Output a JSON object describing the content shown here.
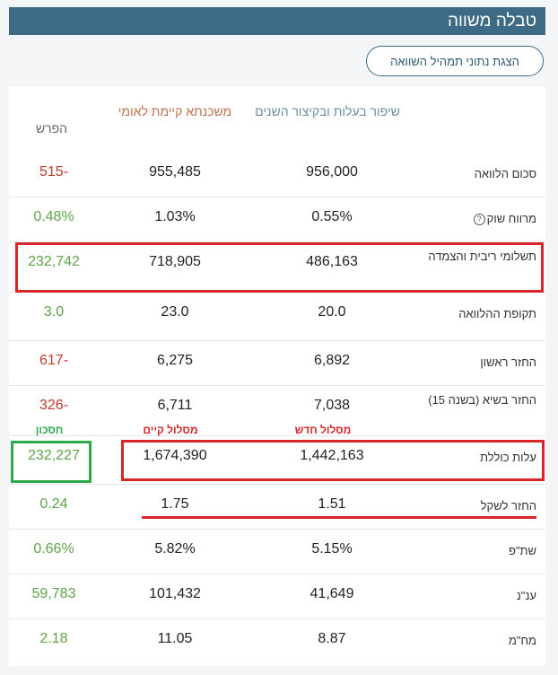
{
  "header": {
    "title": "טבלה משווה"
  },
  "guide_button": {
    "label": "הצגת נתוני תמהיל השוואה"
  },
  "columns": {
    "new_route": "שיפור בעלות ובקיצור השנים",
    "existing": "משכנתא קיימת לאומי",
    "diff": "הפרש"
  },
  "rows": [
    {
      "label": "סכום הלוואה",
      "new": "956,000",
      "existing": "955,485",
      "diff": "-515",
      "diff_color": "#c0392b"
    },
    {
      "label": "מרווח שוק",
      "new": "0.55%",
      "existing": "1.03%",
      "diff": "0.48%",
      "diff_color": "#5fa34a",
      "help_icon": "question-circle-icon"
    },
    {
      "label": "תשלומי ריבית והצמדה",
      "new": "486,163",
      "existing": "718,905",
      "diff": "232,742",
      "diff_color": "#5fa34a"
    },
    {
      "label": "תקופת ההלוואה",
      "new": "20.0",
      "existing": "23.0",
      "diff": "3.0",
      "diff_color": "#5fa34a"
    },
    {
      "label": "החזר ראשון",
      "new": "6,892",
      "existing": "6,275",
      "diff": "-617",
      "diff_color": "#c0392b"
    },
    {
      "label": "החזר בשיא (בשנה 15)",
      "new": "7,038",
      "existing": "6,711",
      "diff": "-326",
      "diff_color": "#c0392b"
    },
    {
      "label": "עלות כוללת",
      "new": "1,442,163",
      "existing": "1,674,390",
      "diff": "232,227",
      "diff_color": "#5fa34a"
    },
    {
      "label": "החזר לשקל",
      "new": "1.51",
      "existing": "1.75",
      "diff": "0.24",
      "diff_color": "#5fa34a"
    },
    {
      "label": "שת\"פ",
      "new": "5.15%",
      "existing": "5.82%",
      "diff": "0.66%",
      "diff_color": "#5fa34a"
    },
    {
      "label": "ענ\"נ",
      "new": "41,649",
      "existing": "101,432",
      "diff": "59,783",
      "diff_color": "#5fa34a"
    },
    {
      "label": "מח\"מ",
      "new": "8.87",
      "existing": "11.05",
      "diff": "2.18",
      "diff_color": "#5fa34a"
    }
  ],
  "annotations": {
    "new_route_tag": "מסלול חדש",
    "existing_route_tag": "מסלול קיים",
    "saving_tag": "חסכון"
  },
  "colors": {
    "header_bg": "#3d6b85",
    "existing_header": "#c0704a",
    "new_header": "#6a8fa3",
    "diff_header": "#666666",
    "highlight_red": "#d8262a",
    "highlight_green": "#2ea84b"
  }
}
